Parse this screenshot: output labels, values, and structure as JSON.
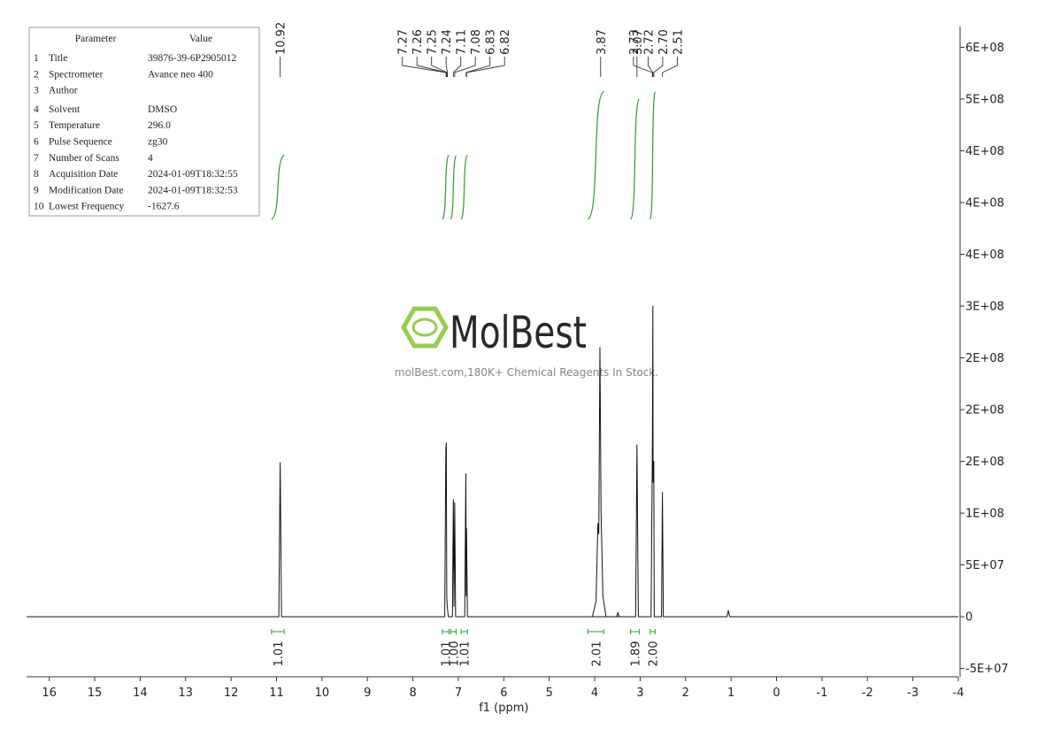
{
  "chart_data": {
    "type": "line",
    "x_label": "f1 (ppm)",
    "xlim": [
      16.5,
      -4
    ],
    "xticks": [
      16,
      15,
      14,
      13,
      12,
      11,
      10,
      9,
      8,
      7,
      6,
      5,
      4,
      3,
      2,
      1,
      0,
      -1,
      -2,
      -3,
      -4
    ],
    "ylim": [
      -58000000,
      570000000
    ],
    "yticks": [
      {
        "value": 550000000,
        "label": "6E+08"
      },
      {
        "value": 500000000,
        "label": "5E+08"
      },
      {
        "value": 450000000,
        "label": "4E+08"
      },
      {
        "value": 400000000,
        "label": "4E+08"
      },
      {
        "value": 350000000,
        "label": "4E+08"
      },
      {
        "value": 300000000,
        "label": "3E+08"
      },
      {
        "value": 250000000,
        "label": "2E+08"
      },
      {
        "value": 200000000,
        "label": "2E+08"
      },
      {
        "value": 150000000,
        "label": "2E+08"
      },
      {
        "value": 100000000,
        "label": "1E+08"
      },
      {
        "value": 50000000,
        "label": "5E+07"
      },
      0,
      {
        "value": -50000000,
        "label": "-5E+07"
      }
    ],
    "series": [
      {
        "color": "#111111",
        "x": [
          16.5,
          10.95,
          10.92,
          10.89,
          7.3,
          7.275,
          7.265,
          7.255,
          7.245,
          7.22,
          7.13,
          7.11,
          7.095,
          7.08,
          7.06,
          6.86,
          6.835,
          6.827,
          6.82,
          6.8,
          3.52,
          3.49,
          3.46,
          4.05,
          3.97,
          3.93,
          3.91,
          3.885,
          3.86,
          3.82,
          3.75,
          3.1,
          3.07,
          3.04,
          2.76,
          2.73,
          2.72,
          2.715,
          2.7,
          2.69,
          2.53,
          2.51,
          2.49,
          1.09,
          1.06,
          1.03,
          -4
        ],
        "values": [
          0,
          0,
          149000000,
          0,
          0,
          162000000,
          168000000,
          20000000,
          10000000,
          0,
          0,
          113000000,
          10000000,
          110000000,
          0,
          0,
          138000000,
          20000000,
          85000000,
          0,
          0,
          4000000,
          0,
          0,
          15000000,
          90000000,
          80000000,
          260000000,
          100000000,
          20000000,
          0,
          0,
          166000000,
          0,
          0,
          170000000,
          300000000,
          130000000,
          150000000,
          0,
          0,
          120000000,
          0,
          0,
          6000000,
          0,
          0
        ]
      }
    ],
    "peak_labels": [
      "10.92",
      "7.27",
      "7.26",
      "7.25",
      "7.24",
      "7.11",
      "7.08",
      "6.83",
      "6.82",
      "3.87",
      "3.07",
      "2.73",
      "2.72",
      "2.70",
      "2.51"
    ],
    "integrals": {
      "color": "#2e9a2e",
      "ranges": [
        [
          11.11,
          10.83
        ],
        [
          7.35,
          7.21
        ],
        [
          7.17,
          7.05
        ],
        [
          6.94,
          6.8
        ],
        [
          4.15,
          3.8
        ],
        [
          3.21,
          3.02
        ],
        [
          2.78,
          2.67
        ]
      ],
      "values": [
        1.01,
        1.01,
        1.0,
        1.01,
        2.01,
        1.89,
        2.0
      ],
      "value_labels": [
        "1.01",
        "1.01",
        "1.00",
        "1.01",
        "2.01",
        "1.89",
        "2.00"
      ]
    },
    "parameters": {
      "header": [
        "Parameter",
        "Value"
      ],
      "rows": [
        [
          "1",
          "Title",
          "39876-39-6P2905012"
        ],
        [
          "2",
          "Spectrometer",
          "Avance neo 400"
        ],
        [
          "3",
          "Author",
          ""
        ],
        [
          "4",
          "Solvent",
          "DMSO"
        ],
        [
          "5",
          "Temperature",
          "296.0"
        ],
        [
          "6",
          "Pulse Sequence",
          "zg30"
        ],
        [
          "7",
          "Number of Scans",
          "4"
        ],
        [
          "8",
          "Acquisition Date",
          "2024-01-09T18:32:55"
        ],
        [
          "9",
          "Modification Date",
          "2024-01-09T18:32:53"
        ],
        [
          "10",
          "Lowest Frequency",
          "-1627.6"
        ]
      ]
    },
    "watermark": {
      "brand": "MolBest",
      "tagline": "molBest.com,180K+ Chemical Reagents In Stock."
    }
  }
}
